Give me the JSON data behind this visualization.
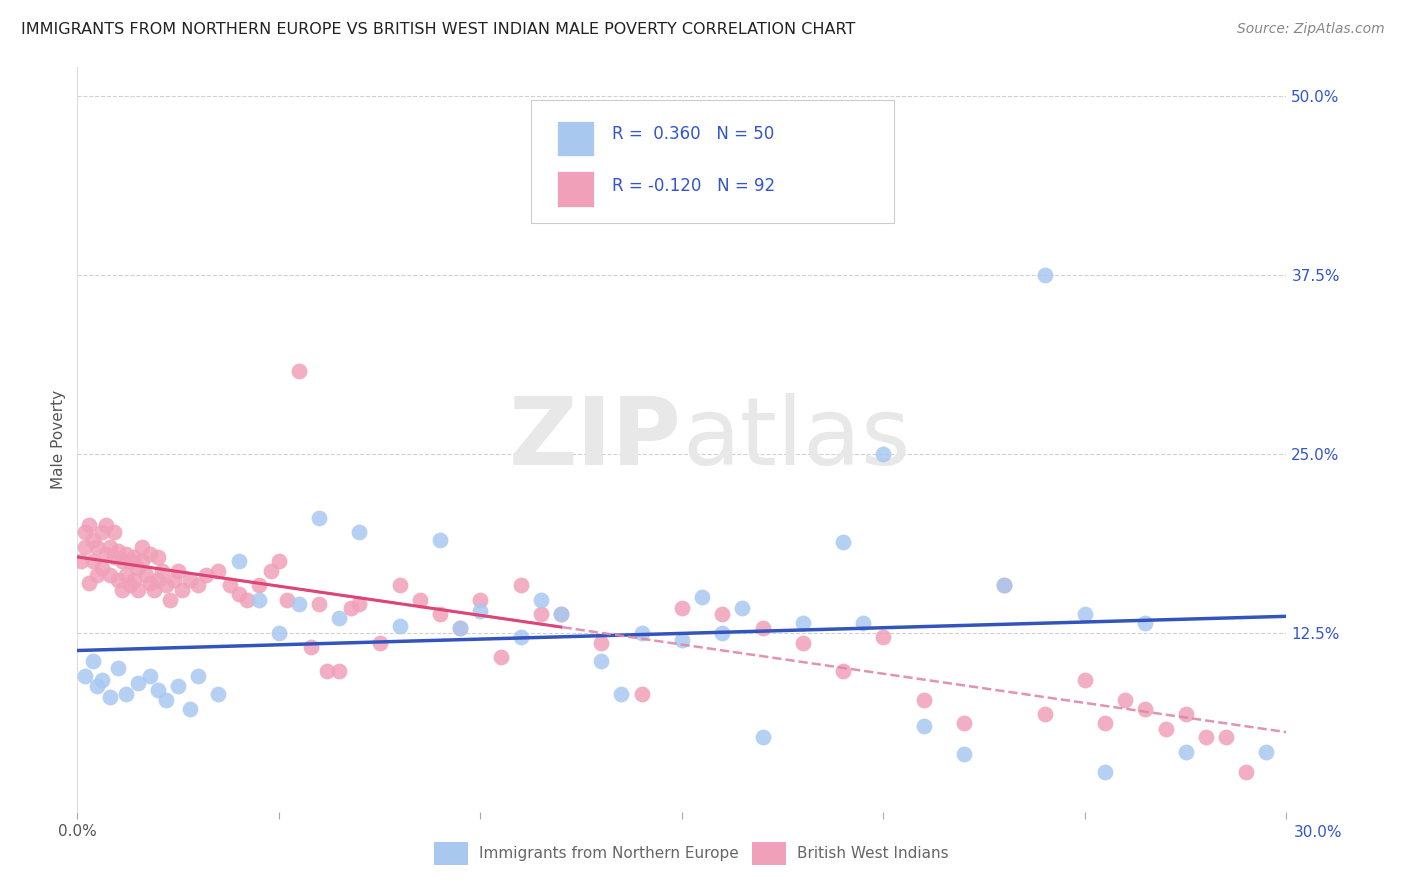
{
  "title": "IMMIGRANTS FROM NORTHERN EUROPE VS BRITISH WEST INDIAN MALE POVERTY CORRELATION CHART",
  "source": "Source: ZipAtlas.com",
  "xlabel_blue": "Immigrants from Northern Europe",
  "xlabel_pink": "British West Indians",
  "ylabel": "Male Poverty",
  "xlim": [
    0.0,
    0.3
  ],
  "ylim": [
    0.0,
    0.52
  ],
  "grid_color": "#cccccc",
  "blue_color": "#a8c8f0",
  "pink_color": "#f0a0b8",
  "blue_line_color": "#3355bb",
  "pink_line_color": "#dd4477",
  "pink_dash_color": "#dd88aa",
  "R_blue": 0.36,
  "N_blue": 50,
  "R_pink": -0.12,
  "N_pink": 92,
  "legend_text_color": "#3355cc",
  "watermark": "ZIPatlas",
  "blue_x": [
    0.002,
    0.004,
    0.005,
    0.006,
    0.008,
    0.01,
    0.012,
    0.015,
    0.018,
    0.02,
    0.022,
    0.025,
    0.028,
    0.03,
    0.035,
    0.04,
    0.045,
    0.05,
    0.055,
    0.06,
    0.065,
    0.07,
    0.08,
    0.09,
    0.095,
    0.1,
    0.11,
    0.115,
    0.12,
    0.13,
    0.135,
    0.14,
    0.15,
    0.155,
    0.16,
    0.165,
    0.17,
    0.18,
    0.19,
    0.195,
    0.2,
    0.21,
    0.22,
    0.23,
    0.24,
    0.25,
    0.255,
    0.265,
    0.275,
    0.295
  ],
  "blue_y": [
    0.095,
    0.105,
    0.088,
    0.092,
    0.08,
    0.1,
    0.082,
    0.09,
    0.095,
    0.085,
    0.078,
    0.088,
    0.072,
    0.095,
    0.082,
    0.175,
    0.148,
    0.125,
    0.145,
    0.205,
    0.135,
    0.195,
    0.13,
    0.19,
    0.128,
    0.14,
    0.122,
    0.148,
    0.138,
    0.105,
    0.082,
    0.125,
    0.12,
    0.15,
    0.125,
    0.142,
    0.052,
    0.132,
    0.188,
    0.132,
    0.25,
    0.06,
    0.04,
    0.158,
    0.375,
    0.138,
    0.028,
    0.132,
    0.042,
    0.042
  ],
  "pink_x": [
    0.001,
    0.002,
    0.002,
    0.003,
    0.003,
    0.004,
    0.004,
    0.005,
    0.005,
    0.006,
    0.006,
    0.007,
    0.007,
    0.008,
    0.008,
    0.009,
    0.009,
    0.01,
    0.01,
    0.011,
    0.011,
    0.012,
    0.012,
    0.013,
    0.013,
    0.014,
    0.014,
    0.015,
    0.015,
    0.016,
    0.016,
    0.017,
    0.018,
    0.018,
    0.019,
    0.02,
    0.02,
    0.021,
    0.022,
    0.023,
    0.024,
    0.025,
    0.026,
    0.028,
    0.03,
    0.032,
    0.035,
    0.038,
    0.04,
    0.042,
    0.045,
    0.048,
    0.05,
    0.052,
    0.055,
    0.058,
    0.06,
    0.062,
    0.065,
    0.068,
    0.07,
    0.075,
    0.08,
    0.085,
    0.09,
    0.095,
    0.1,
    0.105,
    0.11,
    0.115,
    0.12,
    0.13,
    0.14,
    0.15,
    0.16,
    0.17,
    0.18,
    0.19,
    0.2,
    0.21,
    0.22,
    0.23,
    0.24,
    0.25,
    0.255,
    0.26,
    0.265,
    0.27,
    0.275,
    0.28,
    0.285,
    0.29
  ],
  "pink_y": [
    0.175,
    0.185,
    0.195,
    0.16,
    0.2,
    0.175,
    0.19,
    0.165,
    0.185,
    0.17,
    0.195,
    0.18,
    0.2,
    0.165,
    0.185,
    0.178,
    0.195,
    0.162,
    0.182,
    0.155,
    0.175,
    0.165,
    0.18,
    0.158,
    0.175,
    0.162,
    0.178,
    0.155,
    0.17,
    0.175,
    0.185,
    0.165,
    0.16,
    0.18,
    0.155,
    0.162,
    0.178,
    0.168,
    0.158,
    0.148,
    0.162,
    0.168,
    0.155,
    0.162,
    0.158,
    0.165,
    0.168,
    0.158,
    0.152,
    0.148,
    0.158,
    0.168,
    0.175,
    0.148,
    0.308,
    0.115,
    0.145,
    0.098,
    0.098,
    0.142,
    0.145,
    0.118,
    0.158,
    0.148,
    0.138,
    0.128,
    0.148,
    0.108,
    0.158,
    0.138,
    0.138,
    0.118,
    0.082,
    0.142,
    0.138,
    0.128,
    0.118,
    0.098,
    0.122,
    0.078,
    0.062,
    0.158,
    0.068,
    0.092,
    0.062,
    0.078,
    0.072,
    0.058,
    0.068,
    0.052,
    0.052,
    0.028
  ]
}
